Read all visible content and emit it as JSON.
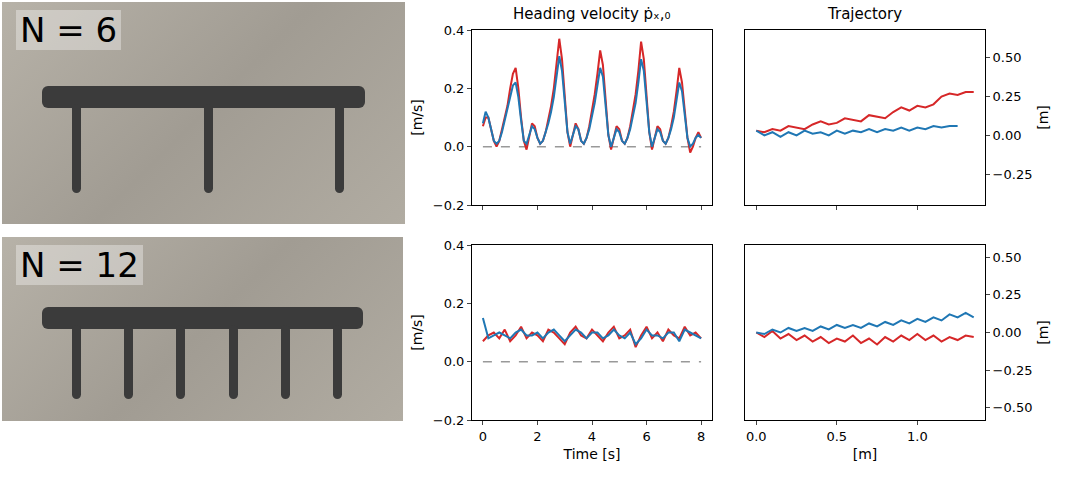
{
  "photos": [
    {
      "label": "N = 6"
    },
    {
      "label": "N = 12"
    }
  ],
  "chart_data": [
    {
      "type": "line",
      "title": "Heading velocity ṗₓ,₀",
      "ylabel": "[m/s]",
      "tick_labels": "y",
      "x": [
        0,
        0.1,
        0.2,
        0.3,
        0.4,
        0.5,
        0.6,
        0.7,
        0.8,
        0.9,
        1,
        1.1,
        1.2,
        1.3,
        1.4,
        1.5,
        1.6,
        1.7,
        1.8,
        1.9,
        2,
        2.1,
        2.2,
        2.3,
        2.4,
        2.5,
        2.6,
        2.7,
        2.8,
        2.9,
        3,
        3.1,
        3.2,
        3.3,
        3.4,
        3.5,
        3.6,
        3.7,
        3.8,
        3.9,
        4,
        4.1,
        4.2,
        4.3,
        4.4,
        4.5,
        4.6,
        4.7,
        4.8,
        4.9,
        5,
        5.1,
        5.2,
        5.3,
        5.4,
        5.5,
        5.6,
        5.7,
        5.8,
        5.9,
        6,
        6.1,
        6.2,
        6.3,
        6.4,
        6.5,
        6.6,
        6.7,
        6.8,
        6.9,
        7,
        7.1,
        7.2,
        7.3,
        7.4,
        7.5,
        7.6,
        7.7,
        7.8,
        7.9,
        8
      ],
      "xlim": [
        -0.4,
        8.4
      ],
      "xticks": [
        0,
        2,
        4,
        6,
        8
      ],
      "ylim": [
        -0.2,
        0.4
      ],
      "yticks": [
        {
          "value": -0.2,
          "label": "−0.2"
        },
        {
          "value": 0,
          "label": "0.0"
        },
        {
          "value": 0.2,
          "label": "0.2"
        },
        {
          "value": 0.4,
          "label": "0.4"
        }
      ],
      "series": [
        {
          "color": "#999999",
          "line_style": "dashed",
          "x": [
            0,
            8
          ],
          "values": [
            0,
            0
          ]
        },
        {
          "color": "#d62728",
          "line_style": "solid",
          "values": [
            0.07,
            0.1,
            0.1,
            0.06,
            0.02,
            0.0,
            0.02,
            0.06,
            0.1,
            0.14,
            0.2,
            0.25,
            0.27,
            0.2,
            0.1,
            0.02,
            -0.01,
            0.04,
            0.08,
            0.07,
            0.03,
            0.01,
            0.02,
            0.05,
            0.09,
            0.14,
            0.2,
            0.28,
            0.37,
            0.3,
            0.16,
            0.05,
            0.0,
            0.04,
            0.08,
            0.06,
            0.02,
            0.01,
            0.03,
            0.07,
            0.12,
            0.18,
            0.25,
            0.33,
            0.28,
            0.15,
            0.04,
            -0.01,
            0.03,
            0.07,
            0.06,
            0.02,
            0.01,
            0.03,
            0.07,
            0.12,
            0.18,
            0.26,
            0.36,
            0.3,
            0.16,
            0.05,
            -0.01,
            0.03,
            0.07,
            0.06,
            0.02,
            0.01,
            0.03,
            0.07,
            0.12,
            0.19,
            0.27,
            0.22,
            0.12,
            0.03,
            -0.02,
            0.0,
            0.03,
            0.05,
            0.03
          ]
        },
        {
          "color": "#1f77b4",
          "line_style": "solid",
          "values": [
            0.08,
            0.12,
            0.1,
            0.06,
            0.02,
            0.01,
            0.02,
            0.05,
            0.09,
            0.12,
            0.17,
            0.21,
            0.22,
            0.17,
            0.09,
            0.02,
            0.01,
            0.04,
            0.07,
            0.06,
            0.03,
            0.01,
            0.02,
            0.05,
            0.08,
            0.12,
            0.17,
            0.24,
            0.31,
            0.26,
            0.14,
            0.05,
            0.01,
            0.04,
            0.07,
            0.06,
            0.02,
            0.01,
            0.03,
            0.06,
            0.1,
            0.15,
            0.21,
            0.27,
            0.24,
            0.13,
            0.04,
            0.0,
            0.03,
            0.06,
            0.05,
            0.02,
            0.01,
            0.03,
            0.06,
            0.1,
            0.15,
            0.22,
            0.3,
            0.26,
            0.14,
            0.05,
            0.0,
            0.03,
            0.06,
            0.05,
            0.02,
            0.01,
            0.03,
            0.06,
            0.1,
            0.16,
            0.22,
            0.19,
            0.1,
            0.03,
            0.0,
            0.01,
            0.03,
            0.04,
            0.03
          ]
        }
      ]
    },
    {
      "type": "line",
      "title": "Trajectory",
      "ylabel": "[m]",
      "tick_labels": "y",
      "xlim": [
        -0.07,
        1.42
      ],
      "xticks": [
        {
          "value": 0,
          "label": "0.0"
        },
        {
          "value": 0.5,
          "label": "0.5"
        },
        {
          "value": 1,
          "label": "1.0"
        }
      ],
      "ylim": [
        -0.45,
        0.68
      ],
      "yticks": [
        {
          "value": -0.25,
          "label": "−0.25"
        },
        {
          "value": 0,
          "label": "0.00"
        },
        {
          "value": 0.25,
          "label": "0.25"
        },
        {
          "value": 0.5,
          "label": "0.50"
        }
      ],
      "series": [
        {
          "color": "#d62728",
          "line_style": "solid",
          "x": [
            0,
            0.05,
            0.1,
            0.15,
            0.2,
            0.25,
            0.3,
            0.35,
            0.4,
            0.45,
            0.5,
            0.55,
            0.6,
            0.65,
            0.7,
            0.75,
            0.8,
            0.85,
            0.9,
            0.95,
            1,
            1.05,
            1.1,
            1.15,
            1.2,
            1.25,
            1.3,
            1.35
          ],
          "values": [
            0.03,
            0.02,
            0.04,
            0.03,
            0.06,
            0.05,
            0.04,
            0.07,
            0.09,
            0.07,
            0.08,
            0.11,
            0.1,
            0.09,
            0.13,
            0.12,
            0.11,
            0.15,
            0.18,
            0.16,
            0.19,
            0.18,
            0.2,
            0.25,
            0.27,
            0.26,
            0.28,
            0.28
          ]
        },
        {
          "color": "#1f77b4",
          "line_style": "solid",
          "x": [
            0,
            0.05,
            0.1,
            0.15,
            0.2,
            0.25,
            0.3,
            0.35,
            0.4,
            0.45,
            0.5,
            0.55,
            0.6,
            0.65,
            0.7,
            0.75,
            0.8,
            0.85,
            0.9,
            0.95,
            1,
            1.05,
            1.1,
            1.15,
            1.2,
            1.25
          ],
          "values": [
            0.03,
            0.0,
            0.02,
            -0.01,
            0.02,
            0.0,
            0.03,
            0.01,
            0.02,
            0.0,
            0.03,
            0.01,
            0.03,
            0.02,
            0.04,
            0.02,
            0.04,
            0.03,
            0.05,
            0.03,
            0.05,
            0.04,
            0.06,
            0.05,
            0.06,
            0.06
          ]
        }
      ]
    },
    {
      "type": "line",
      "xlabel": "Time [s]",
      "ylabel": "[m/s]",
      "x": [
        0,
        0.2,
        0.4,
        0.6,
        0.8,
        1,
        1.2,
        1.4,
        1.6,
        1.8,
        2,
        2.2,
        2.4,
        2.6,
        2.8,
        3,
        3.2,
        3.4,
        3.6,
        3.8,
        4,
        4.2,
        4.4,
        4.6,
        4.8,
        5,
        5.2,
        5.4,
        5.6,
        5.8,
        6,
        6.2,
        6.4,
        6.6,
        6.8,
        7,
        7.2,
        7.4,
        7.6,
        7.8,
        8
      ],
      "xlim": [
        -0.4,
        8.4
      ],
      "xticks": [
        0,
        2,
        4,
        6,
        8
      ],
      "ylim": [
        -0.2,
        0.4
      ],
      "yticks": [
        {
          "value": -0.2,
          "label": "−0.2"
        },
        {
          "value": 0,
          "label": "0.0"
        },
        {
          "value": 0.2,
          "label": "0.2"
        },
        {
          "value": 0.4,
          "label": "0.4"
        }
      ],
      "series": [
        {
          "color": "#999999",
          "line_style": "dashed",
          "x": [
            0,
            8
          ],
          "values": [
            0,
            0
          ]
        },
        {
          "color": "#d62728",
          "line_style": "solid",
          "values": [
            0.07,
            0.09,
            0.1,
            0.08,
            0.11,
            0.07,
            0.09,
            0.12,
            0.08,
            0.1,
            0.09,
            0.07,
            0.11,
            0.1,
            0.08,
            0.06,
            0.1,
            0.12,
            0.09,
            0.08,
            0.11,
            0.09,
            0.07,
            0.1,
            0.12,
            0.08,
            0.09,
            0.11,
            0.05,
            0.09,
            0.12,
            0.08,
            0.1,
            0.07,
            0.11,
            0.09,
            0.08,
            0.12,
            0.09,
            0.1,
            0.08
          ]
        },
        {
          "color": "#1f77b4",
          "line_style": "solid",
          "values": [
            0.15,
            0.08,
            0.09,
            0.1,
            0.09,
            0.08,
            0.1,
            0.11,
            0.09,
            0.09,
            0.1,
            0.08,
            0.1,
            0.11,
            0.09,
            0.07,
            0.09,
            0.11,
            0.1,
            0.08,
            0.1,
            0.1,
            0.08,
            0.09,
            0.11,
            0.09,
            0.08,
            0.1,
            0.06,
            0.08,
            0.11,
            0.09,
            0.09,
            0.08,
            0.1,
            0.1,
            0.07,
            0.11,
            0.1,
            0.09,
            0.08
          ]
        }
      ]
    },
    {
      "type": "line",
      "xlabel": "[m]",
      "ylabel": "[m]",
      "xlim": [
        -0.07,
        1.42
      ],
      "xticks": [
        {
          "value": 0,
          "label": "0.0"
        },
        {
          "value": 0.5,
          "label": "0.5"
        },
        {
          "value": 1,
          "label": "1.0"
        }
      ],
      "ylim": [
        -0.58,
        0.58
      ],
      "yticks": [
        {
          "value": -0.5,
          "label": "−0.50"
        },
        {
          "value": -0.25,
          "label": "−0.25"
        },
        {
          "value": 0,
          "label": "0.00"
        },
        {
          "value": 0.25,
          "label": "0.25"
        },
        {
          "value": 0.5,
          "label": "0.50"
        }
      ],
      "series": [
        {
          "color": "#d62728",
          "line_style": "solid",
          "x": [
            0,
            0.05,
            0.1,
            0.15,
            0.2,
            0.25,
            0.3,
            0.35,
            0.4,
            0.45,
            0.5,
            0.55,
            0.6,
            0.65,
            0.7,
            0.75,
            0.8,
            0.85,
            0.9,
            0.95,
            1,
            1.05,
            1.1,
            1.15,
            1.2,
            1.25,
            1.3,
            1.35
          ],
          "values": [
            0.0,
            -0.03,
            0.01,
            -0.04,
            -0.01,
            -0.05,
            -0.02,
            -0.06,
            -0.03,
            -0.07,
            -0.04,
            -0.06,
            -0.02,
            -0.07,
            -0.04,
            -0.08,
            -0.03,
            -0.06,
            -0.02,
            -0.05,
            -0.01,
            -0.05,
            -0.02,
            -0.06,
            -0.03,
            -0.05,
            -0.02,
            -0.03
          ]
        },
        {
          "color": "#1f77b4",
          "line_style": "solid",
          "x": [
            0,
            0.05,
            0.1,
            0.15,
            0.2,
            0.25,
            0.3,
            0.35,
            0.4,
            0.45,
            0.5,
            0.55,
            0.6,
            0.65,
            0.7,
            0.75,
            0.8,
            0.85,
            0.9,
            0.95,
            1,
            1.05,
            1.1,
            1.15,
            1.2,
            1.25,
            1.3,
            1.35
          ],
          "values": [
            0.0,
            -0.01,
            0.02,
            0.0,
            0.03,
            0.01,
            0.03,
            0.01,
            0.04,
            0.02,
            0.05,
            0.03,
            0.05,
            0.03,
            0.06,
            0.04,
            0.07,
            0.05,
            0.08,
            0.06,
            0.09,
            0.07,
            0.1,
            0.08,
            0.12,
            0.1,
            0.13,
            0.1
          ]
        }
      ]
    }
  ]
}
